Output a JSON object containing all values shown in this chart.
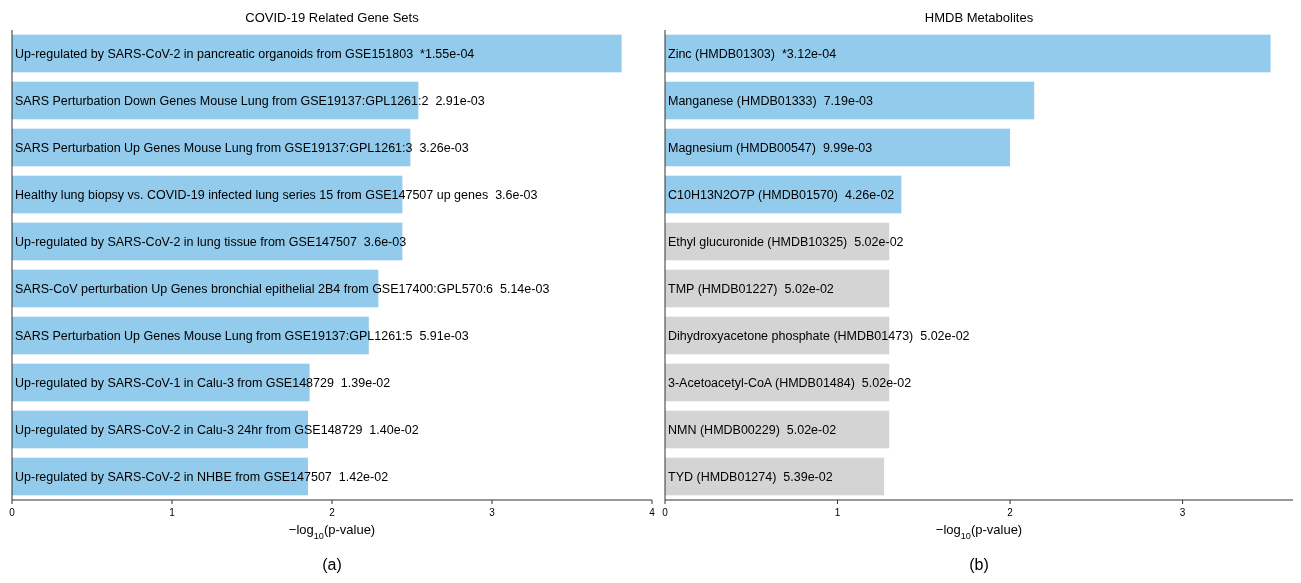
{
  "chart_data": [
    {
      "type": "bar",
      "orientation": "horizontal",
      "title": "COVID-19 Related Gene Sets",
      "xlabel": "−log$_{10}$(p-value)",
      "annotations": [
        "(a)"
      ],
      "categories": [
        "Up-regulated by SARS-CoV-2 in pancreatic organoids from GSE151803  *1.55e-04",
        "SARS Perturbation Down Genes Mouse Lung from GSE19137:GPL1261:2  2.91e-03",
        "SARS Perturbation Up Genes Mouse Lung from GSE19137:GPL1261:3  3.26e-03",
        "Healthy lung biopsy vs. COVID-19 infected lung series 15 from GSE147507 up genes  3.6e-03",
        "Up-regulated by SARS-CoV-2 in lung tissue from GSE147507  3.6e-03",
        "SARS-CoV perturbation Up Genes bronchial epithelial 2B4 from GSE17400:GPL570:6  5.14e-03",
        "SARS Perturbation Up Genes Mouse Lung from GSE19137:GPL1261:5  5.91e-03",
        "Up-regulated by SARS-CoV-1 in Calu-3 from GSE148729  1.39e-02",
        "Up-regulated by SARS-CoV-2 in Calu-3 24hr from GSE148729  1.40e-02",
        "Up-regulated by SARS-CoV-2 in NHBE from GSE147507  1.42e-02"
      ],
      "values": [
        3.81,
        2.54,
        2.49,
        2.44,
        2.44,
        2.29,
        2.23,
        1.86,
        1.85,
        1.85
      ],
      "colors": [
        "#92cbeb",
        "#92cbeb",
        "#92cbeb",
        "#92cbeb",
        "#92cbeb",
        "#92cbeb",
        "#92cbeb",
        "#92cbeb",
        "#92cbeb",
        "#92cbeb"
      ],
      "xlim": [
        0,
        4
      ],
      "xticks": [
        0,
        1,
        2,
        3,
        4
      ]
    },
    {
      "type": "bar",
      "orientation": "horizontal",
      "title": "HMDB Metabolites",
      "xlabel": "−log$_{10}$(p-value)",
      "annotations": [
        "(b)"
      ],
      "categories": [
        "Zinc (HMDB01303)  *3.12e-04",
        "Manganese (HMDB01333)  7.19e-03",
        "Magnesium (HMDB00547)  9.99e-03",
        "C10H13N2O7P (HMDB01570)  4.26e-02",
        "Ethyl glucuronide (HMDB10325)  5.02e-02",
        "TMP (HMDB01227)  5.02e-02",
        "Dihydroxyacetone phosphate (HMDB01473)  5.02e-02",
        "3-Acetoacetyl-CoA (HMDB01484)  5.02e-02",
        "NMN (HMDB00229)  5.02e-02",
        "TYD (HMDB01274)  5.39e-02"
      ],
      "values": [
        3.51,
        2.14,
        2.0,
        1.37,
        1.3,
        1.3,
        1.3,
        1.3,
        1.3,
        1.27
      ],
      "colors": [
        "#92cbeb",
        "#92cbeb",
        "#92cbeb",
        "#92cbeb",
        "#d4d4d4",
        "#d4d4d4",
        "#d4d4d4",
        "#d4d4d4",
        "#d4d4d4",
        "#d4d4d4"
      ],
      "xlim": [
        0,
        3.64
      ],
      "xticks": [
        0,
        1,
        2,
        3
      ]
    }
  ]
}
